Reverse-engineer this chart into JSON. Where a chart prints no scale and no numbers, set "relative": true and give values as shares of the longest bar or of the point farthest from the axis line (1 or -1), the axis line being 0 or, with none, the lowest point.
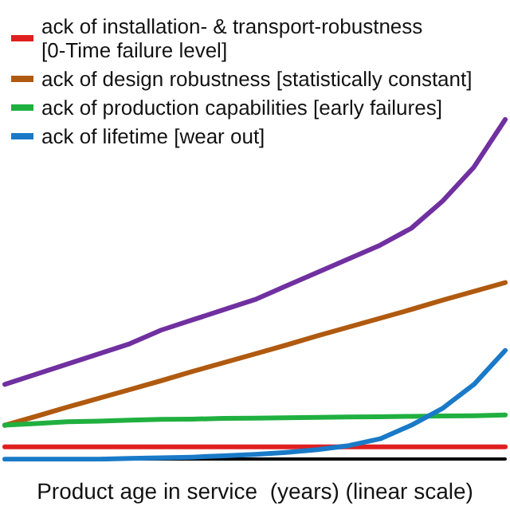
{
  "chart_data": {
    "type": "line",
    "relative": true,
    "xlabel": "Product age in service  (years) (linear scale)",
    "categories": [
      null,
      null,
      null,
      null,
      null,
      null,
      null,
      null,
      null,
      null,
      null,
      null,
      null,
      null,
      null,
      null,
      null
    ],
    "legend": "top left",
    "grid": false,
    "marker": "none",
    "line_style": "solid",
    "series": [
      {
        "name": "ack of installation- & transport-robustness [0-Time failure level]",
        "color": "#e02020",
        "values": [
          0.036,
          0.036,
          0.036,
          0.036,
          0.036,
          0.036,
          0.036,
          0.036,
          0.036,
          0.036,
          0.036,
          0.036,
          0.036,
          0.036,
          0.036,
          0.036,
          0.036
        ]
      },
      {
        "name": "ack of design robustness [statistically constant]",
        "color": "#b05a10",
        "values": [
          0.1,
          0.126,
          0.153,
          0.179,
          0.205,
          0.231,
          0.258,
          0.284,
          0.31,
          0.336,
          0.363,
          0.389,
          0.415,
          0.441,
          0.468,
          0.494,
          0.52
        ]
      },
      {
        "name": "ack of production capabilities [early failures]",
        "color": "#20b040",
        "values": [
          0.1,
          0.105,
          0.11,
          0.112,
          0.115,
          0.117,
          0.118,
          0.12,
          0.121,
          0.122,
          0.123,
          0.124,
          0.125,
          0.126,
          0.127,
          0.128,
          0.13
        ]
      },
      {
        "name": "ack of lifetime [wear out]",
        "color": "#1a7ac8",
        "values": [
          0,
          0,
          0,
          0,
          0.002,
          0.004,
          0.006,
          0.01,
          0.014,
          0.02,
          0.028,
          0.04,
          0.06,
          0.1,
          0.15,
          0.22,
          0.32
        ]
      },
      {
        "color": "#7030a0",
        "values": [
          0.22,
          0.25,
          0.28,
          0.31,
          0.34,
          0.38,
          0.41,
          0.44,
          0.47,
          0.51,
          0.55,
          0.59,
          0.63,
          0.68,
          0.76,
          0.86,
          1.0
        ]
      }
    ]
  }
}
